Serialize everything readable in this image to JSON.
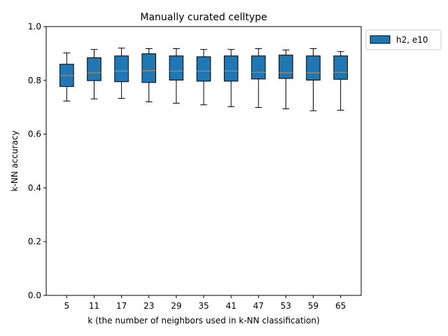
{
  "chart_data": {
    "type": "box",
    "title": "Manually curated celltype",
    "xlabel": "k (the number of neighbors used in k-NN classification)",
    "ylabel": "k-NN accuracy",
    "ylim": [
      0,
      1
    ],
    "yticks": [
      "0.0",
      "0.2",
      "0.4",
      "0.6",
      "0.8",
      "1.0"
    ],
    "grid": false,
    "legend_position": "outside-top-right",
    "categories": [
      "5",
      "11",
      "17",
      "23",
      "29",
      "35",
      "41",
      "47",
      "53",
      "59",
      "65"
    ],
    "series": [
      {
        "name": "h2, e10",
        "color": "#1f77b4",
        "median_color": "#ff7f0e",
        "boxes": [
          {
            "k": "5",
            "whislo": 0.723,
            "q1": 0.777,
            "med": 0.818,
            "q3": 0.86,
            "whishi": 0.902
          },
          {
            "k": "11",
            "whislo": 0.731,
            "q1": 0.799,
            "med": 0.828,
            "q3": 0.884,
            "whishi": 0.915
          },
          {
            "k": "17",
            "whislo": 0.733,
            "q1": 0.795,
            "med": 0.835,
            "q3": 0.891,
            "whishi": 0.92
          },
          {
            "k": "23",
            "whislo": 0.72,
            "q1": 0.792,
            "med": 0.836,
            "q3": 0.899,
            "whishi": 0.918
          },
          {
            "k": "29",
            "whislo": 0.715,
            "q1": 0.801,
            "med": 0.835,
            "q3": 0.891,
            "whishi": 0.918
          },
          {
            "k": "35",
            "whislo": 0.709,
            "q1": 0.797,
            "med": 0.835,
            "q3": 0.888,
            "whishi": 0.915
          },
          {
            "k": "41",
            "whislo": 0.702,
            "q1": 0.797,
            "med": 0.835,
            "q3": 0.891,
            "whishi": 0.915
          },
          {
            "k": "47",
            "whislo": 0.699,
            "q1": 0.805,
            "med": 0.83,
            "q3": 0.891,
            "whishi": 0.918
          },
          {
            "k": "53",
            "whislo": 0.694,
            "q1": 0.807,
            "med": 0.828,
            "q3": 0.894,
            "whishi": 0.913
          },
          {
            "k": "59",
            "whislo": 0.687,
            "q1": 0.801,
            "med": 0.828,
            "q3": 0.891,
            "whishi": 0.918
          },
          {
            "k": "65",
            "whislo": 0.689,
            "q1": 0.804,
            "med": 0.83,
            "q3": 0.891,
            "whishi": 0.907
          }
        ]
      }
    ]
  }
}
